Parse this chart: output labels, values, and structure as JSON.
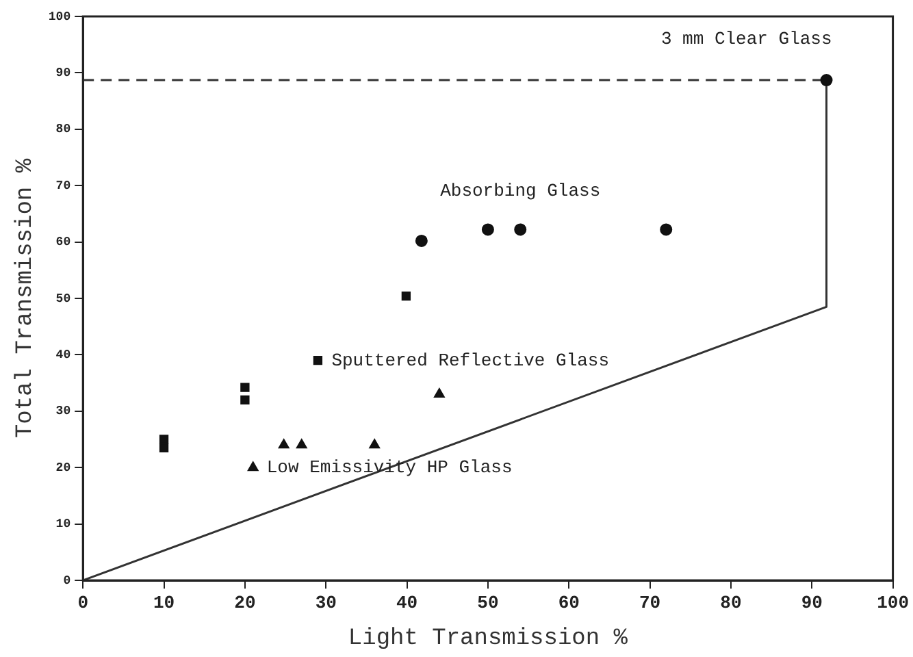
{
  "chart_data": {
    "type": "scatter",
    "xlabel": "Light Transmission %",
    "ylabel": "Total Transmission %",
    "xlim": [
      0,
      100
    ],
    "ylim": [
      0,
      100
    ],
    "xticks": [
      0,
      10,
      20,
      30,
      40,
      50,
      60,
      70,
      80,
      90,
      100
    ],
    "yticks": [
      0,
      10,
      20,
      30,
      40,
      50,
      60,
      70,
      80,
      90,
      100
    ],
    "grid": false,
    "legend": false,
    "series": [
      {
        "type": "scatter",
        "marker": "circle",
        "color": "#111111",
        "x": [
          41.8,
          50,
          54,
          72,
          91.8
        ],
        "values": [
          60.2,
          62.2,
          62.2,
          62.2,
          88.7
        ]
      },
      {
        "type": "scatter",
        "marker": "square",
        "color": "#111111",
        "x": [
          39.9,
          29,
          20,
          20,
          10,
          10
        ],
        "values": [
          50.4,
          39,
          34.2,
          32,
          25,
          23.5
        ]
      },
      {
        "type": "scatter",
        "marker": "triangle",
        "color": "#111111",
        "x": [
          21,
          24.8,
          27,
          36,
          44
        ],
        "values": [
          20,
          24,
          24,
          24,
          33
        ]
      },
      {
        "type": "line",
        "marker": "none",
        "line_style": "dashed",
        "color": "#333333",
        "x": [
          0,
          91.8
        ],
        "values": [
          88.7,
          88.7
        ]
      },
      {
        "type": "line",
        "marker": "none",
        "line_style": "solid",
        "color": "#333333",
        "x": [
          91.8,
          91.8,
          0
        ],
        "values": [
          88.7,
          48.5,
          0
        ]
      }
    ],
    "annotations": [
      {
        "text": "3 mm Clear Glass",
        "x": 91.8,
        "y": 88.7
      },
      {
        "text": "Absorbing Glass",
        "x": 54,
        "y": 62.2
      },
      {
        "text": "Sputtered Reflective Glass",
        "x": 29,
        "y": 39
      },
      {
        "text": "Low Emissivity HP Glass",
        "x": 21,
        "y": 20
      }
    ]
  }
}
